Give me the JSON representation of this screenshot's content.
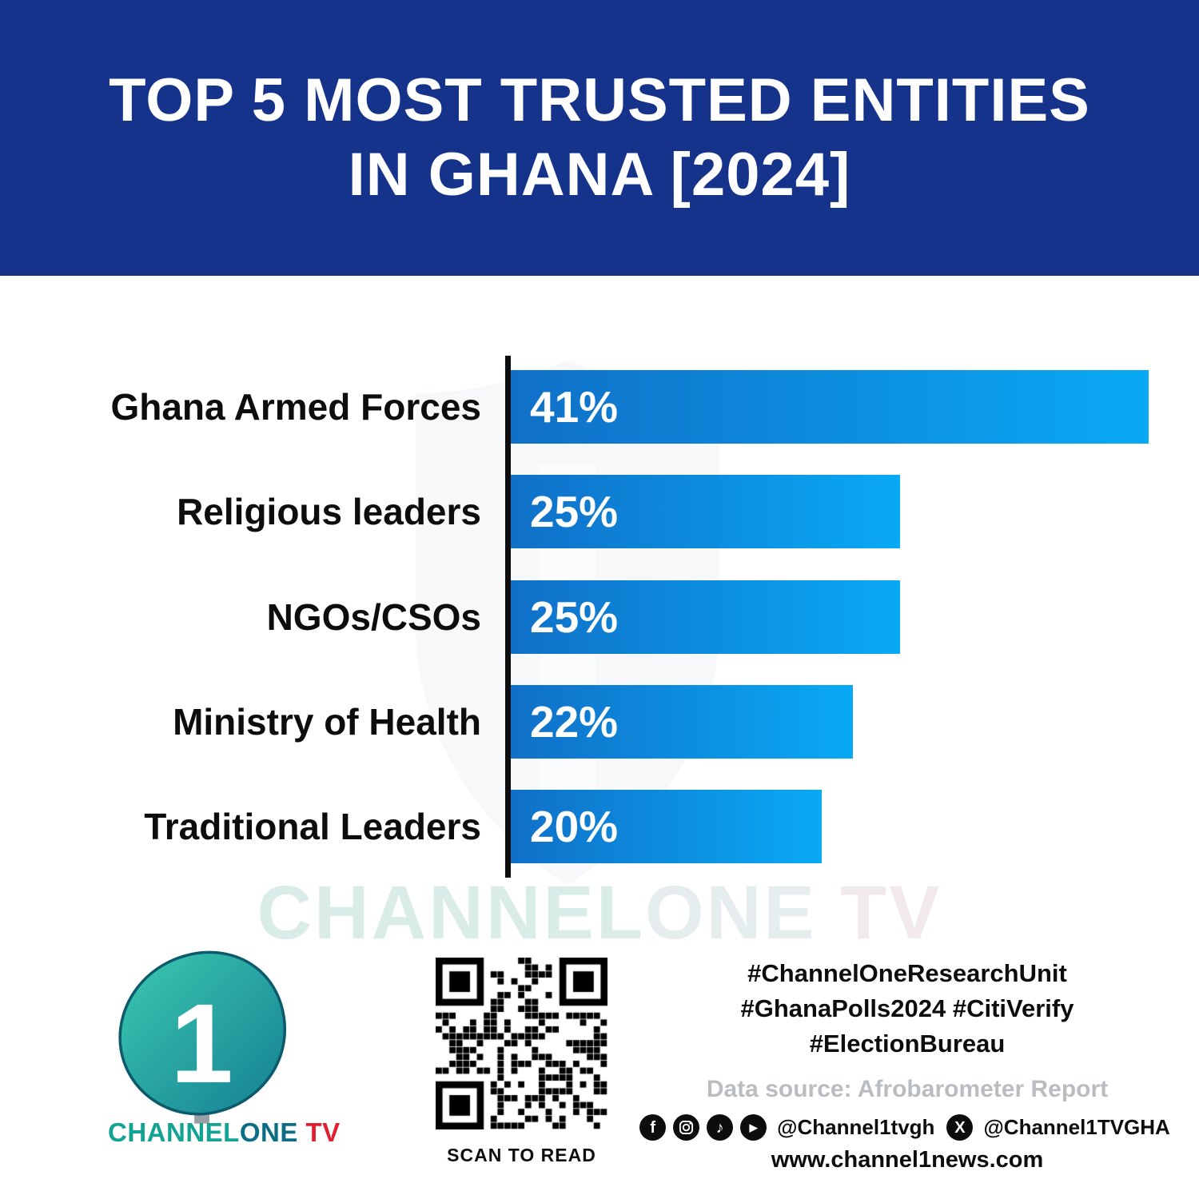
{
  "header": {
    "title_line1": "TOP 5 MOST TRUSTED ENTITIES",
    "title_line2": "IN GHANA [2024]"
  },
  "chart_data": {
    "type": "bar",
    "orientation": "horizontal",
    "title": "TOP 5 MOST TRUSTED ENTITIES IN GHANA [2024]",
    "categories": [
      "Ghana Armed Forces",
      "Religious leaders",
      "NGOs/CSOs",
      "Ministry of Health",
      "Traditional Leaders"
    ],
    "values": [
      41,
      25,
      25,
      22,
      20
    ],
    "value_labels": [
      "41%",
      "25%",
      "25%",
      "22%",
      "20%"
    ],
    "xlim": [
      0,
      41
    ],
    "grid": false,
    "legend": "none",
    "bar_gradient_start": "#1070c8",
    "bar_gradient_end": "#09a9f4"
  },
  "watermark": {
    "part1": "CHANNEL",
    "part2": "ONE",
    "part3": " TV"
  },
  "footer": {
    "logo": {
      "numeral": "1",
      "text_channel": "CHANNEL",
      "text_one": "ONE",
      "text_tv": " TV"
    },
    "qr_label": "SCAN TO READ",
    "hashtags_line1": "#ChannelOneResearchUnit",
    "hashtags_line2": "#GhanaPolls2024 #CitiVerify",
    "hashtags_line3": "#ElectionBureau",
    "data_source": "Data source: Afrobarometer Report",
    "social_handle1": "@Channel1tvgh",
    "social_handle2": "@Channel1TVGHA",
    "website": "www.channel1news.com"
  },
  "colors": {
    "header_bg": "#16338c",
    "bar_gradient_start": "#1070c8",
    "bar_gradient_end": "#09a9f4",
    "accent_teal": "#12a393",
    "tv_red": "#e21f2f",
    "axis": "#0d0d0d"
  }
}
